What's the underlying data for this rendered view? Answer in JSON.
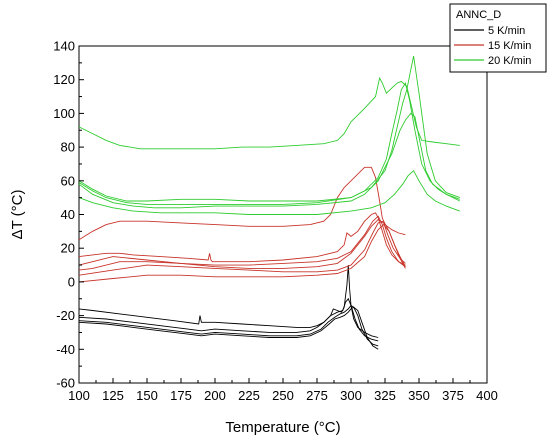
{
  "chart_data": {
    "type": "line",
    "title": "",
    "xlabel": "Temperature (°C)",
    "ylabel": "ΔT (°C)",
    "xlim": [
      100,
      400
    ],
    "ylim": [
      -60,
      140
    ],
    "xticks": [
      100,
      125,
      150,
      175,
      200,
      225,
      250,
      275,
      300,
      325,
      350,
      375,
      400
    ],
    "yticks": [
      -60,
      -40,
      -20,
      0,
      20,
      40,
      60,
      80,
      100,
      120,
      140
    ],
    "grid": false,
    "legend": {
      "title": "ANNC_D",
      "placement": "top-right",
      "entries": [
        "5 K/min",
        "15 K/min",
        "20 K/min"
      ]
    },
    "colors": {
      "5 K/min": "#000000",
      "15 K/min": "#c8342a",
      "20 K/min": "#2ecc2e"
    },
    "series": [
      {
        "name": "5 K/min",
        "x": [
          100,
          110,
          130,
          150,
          170,
          188,
          189,
          190,
          200,
          220,
          240,
          260,
          270,
          275,
          280,
          285,
          287,
          290,
          293,
          295,
          296,
          297,
          298,
          299,
          300,
          302,
          305,
          310,
          315,
          320
        ],
        "y": [
          -16,
          -17,
          -19,
          -21,
          -23,
          -25,
          -20,
          -24,
          -24,
          -25,
          -26,
          -27,
          -27,
          -26,
          -24,
          -20,
          -16,
          -17,
          -18,
          -15,
          -8,
          -2,
          10,
          -4,
          -14,
          -22,
          -27,
          -30,
          -32,
          -33
        ]
      },
      {
        "name": "5 K/min",
        "x": [
          100,
          120,
          140,
          160,
          180,
          190,
          200,
          220,
          240,
          260,
          270,
          275,
          280,
          285,
          290,
          294,
          296,
          298,
          300,
          303,
          306,
          310,
          315,
          320
        ],
        "y": [
          -21,
          -22,
          -24,
          -26,
          -28,
          -29,
          -28,
          -29,
          -30,
          -30,
          -29,
          -27,
          -24,
          -20,
          -18,
          -17,
          -12,
          -10,
          -14,
          -22,
          -28,
          -32,
          -34,
          -35
        ]
      },
      {
        "name": "5 K/min",
        "x": [
          100,
          120,
          140,
          160,
          180,
          190,
          200,
          220,
          240,
          260,
          270,
          278,
          283,
          288,
          292,
          295,
          298,
          300,
          302,
          305,
          308,
          312,
          316,
          320
        ],
        "y": [
          -23,
          -24,
          -26,
          -28,
          -30,
          -31,
          -30,
          -31,
          -32,
          -32,
          -31,
          -28,
          -24,
          -21,
          -19,
          -18,
          -16,
          -14,
          -15,
          -20,
          -28,
          -34,
          -37,
          -38
        ]
      },
      {
        "name": "5 K/min",
        "x": [
          100,
          120,
          140,
          160,
          180,
          190,
          200,
          220,
          240,
          260,
          270,
          278,
          284,
          288,
          292,
          295,
          298,
          300,
          302,
          305,
          308,
          312,
          316,
          320
        ],
        "y": [
          -24,
          -25,
          -27,
          -29,
          -31,
          -32,
          -31,
          -32,
          -33,
          -33,
          -32,
          -29,
          -25,
          -22,
          -21,
          -20,
          -18,
          -16,
          -15,
          -17,
          -24,
          -33,
          -38,
          -40
        ]
      },
      {
        "name": "15 K/min",
        "x": [
          100,
          110,
          120,
          130,
          150,
          175,
          200,
          225,
          250,
          270,
          280,
          285,
          290,
          295,
          300,
          305,
          310,
          315,
          318,
          321,
          323,
          325,
          330,
          335,
          340
        ],
        "y": [
          25,
          30,
          34,
          36,
          36,
          35,
          34,
          33,
          33,
          34,
          36,
          40,
          50,
          56,
          60,
          64,
          68,
          68,
          62,
          48,
          38,
          34,
          31,
          29,
          28
        ]
      },
      {
        "name": "15 K/min",
        "x": [
          100,
          110,
          120,
          130,
          140,
          160,
          180,
          195,
          196,
          197,
          198,
          200,
          225,
          250,
          275,
          290,
          295,
          297,
          300,
          305,
          310,
          315,
          318,
          320,
          323,
          326,
          330,
          335,
          340
        ],
        "y": [
          15,
          16,
          17,
          17,
          16,
          15,
          14,
          13,
          17,
          13,
          12,
          12,
          12,
          13,
          15,
          18,
          22,
          29,
          27,
          30,
          36,
          40,
          41,
          38,
          30,
          22,
          16,
          12,
          10
        ]
      },
      {
        "name": "15 K/min",
        "x": [
          100,
          110,
          130,
          150,
          175,
          200,
          225,
          250,
          275,
          290,
          300,
          310,
          316,
          320,
          323,
          326,
          330,
          335,
          340
        ],
        "y": [
          7,
          8,
          12,
          12,
          11,
          10,
          10,
          11,
          12,
          14,
          18,
          28,
          36,
          39,
          34,
          26,
          18,
          12,
          9
        ]
      },
      {
        "name": "15 K/min",
        "x": [
          100,
          110,
          125,
          150,
          175,
          200,
          225,
          250,
          275,
          290,
          300,
          310,
          315,
          320,
          324,
          327,
          331,
          336,
          340
        ],
        "y": [
          10,
          12,
          15,
          13,
          11,
          9,
          8,
          8,
          9,
          11,
          17,
          27,
          33,
          37,
          35,
          28,
          20,
          14,
          11
        ]
      },
      {
        "name": "15 K/min",
        "x": [
          100,
          125,
          150,
          175,
          200,
          225,
          250,
          275,
          290,
          300,
          310,
          316,
          320,
          324,
          328,
          332,
          336,
          340
        ],
        "y": [
          4,
          7,
          10,
          9,
          8,
          7,
          6,
          6,
          7,
          10,
          19,
          29,
          35,
          36,
          30,
          22,
          15,
          9
        ]
      },
      {
        "name": "15 K/min",
        "x": [
          100,
          125,
          150,
          175,
          200,
          225,
          250,
          275,
          290,
          300,
          310,
          315,
          320,
          324,
          328,
          332,
          336,
          340
        ],
        "y": [
          0,
          2,
          4,
          4,
          3,
          3,
          3,
          4,
          5,
          8,
          15,
          24,
          31,
          34,
          30,
          22,
          14,
          8
        ]
      },
      {
        "name": "20 K/min",
        "x": [
          100,
          110,
          120,
          130,
          145,
          160,
          180,
          200,
          220,
          240,
          260,
          280,
          290,
          295,
          300,
          305,
          310,
          318,
          321,
          323,
          326,
          330,
          334,
          337,
          341,
          344,
          348,
          352,
          360,
          370,
          380
        ],
        "y": [
          92,
          88,
          84,
          81,
          79,
          79,
          79,
          79,
          80,
          80,
          81,
          82,
          84,
          88,
          95,
          99,
          103,
          110,
          121,
          118,
          112,
          115,
          118,
          119,
          116,
          106,
          92,
          84,
          83,
          82,
          81
        ]
      },
      {
        "name": "20 K/min",
        "x": [
          100,
          110,
          120,
          135,
          150,
          175,
          200,
          225,
          250,
          275,
          300,
          310,
          320,
          326,
          330,
          334,
          337,
          340,
          343,
          347,
          352,
          358,
          364,
          370,
          380
        ],
        "y": [
          60,
          55,
          51,
          48,
          48,
          49,
          49,
          48,
          48,
          48,
          50,
          54,
          62,
          73,
          88,
          102,
          114,
          118,
          108,
          90,
          70,
          60,
          55,
          52,
          49
        ]
      },
      {
        "name": "20 K/min",
        "x": [
          100,
          110,
          120,
          135,
          150,
          175,
          200,
          225,
          250,
          275,
          300,
          315,
          325,
          330,
          334,
          338,
          341,
          344,
          346,
          350,
          356,
          362,
          370,
          380
        ],
        "y": [
          59,
          54,
          50,
          47,
          46,
          46,
          46,
          46,
          46,
          47,
          50,
          56,
          66,
          78,
          92,
          106,
          114,
          126,
          134,
          112,
          76,
          60,
          53,
          50
        ]
      },
      {
        "name": "20 K/min",
        "x": [
          100,
          110,
          125,
          140,
          155,
          175,
          200,
          225,
          250,
          275,
          300,
          310,
          320,
          330,
          336,
          340,
          344,
          347,
          350,
          355,
          360,
          365,
          370,
          380
        ],
        "y": [
          58,
          52,
          47,
          45,
          44,
          44,
          45,
          45,
          45,
          46,
          48,
          52,
          60,
          76,
          90,
          96,
          100,
          98,
          86,
          66,
          58,
          55,
          52,
          48
        ]
      },
      {
        "name": "20 K/min",
        "x": [
          100,
          110,
          125,
          140,
          160,
          180,
          200,
          225,
          250,
          275,
          300,
          315,
          325,
          332,
          338,
          342,
          346,
          350,
          356,
          362,
          370,
          380
        ],
        "y": [
          50,
          47,
          44,
          42,
          41,
          41,
          41,
          40,
          40,
          40,
          42,
          44,
          47,
          52,
          58,
          63,
          66,
          60,
          52,
          48,
          45,
          42
        ]
      }
    ]
  }
}
